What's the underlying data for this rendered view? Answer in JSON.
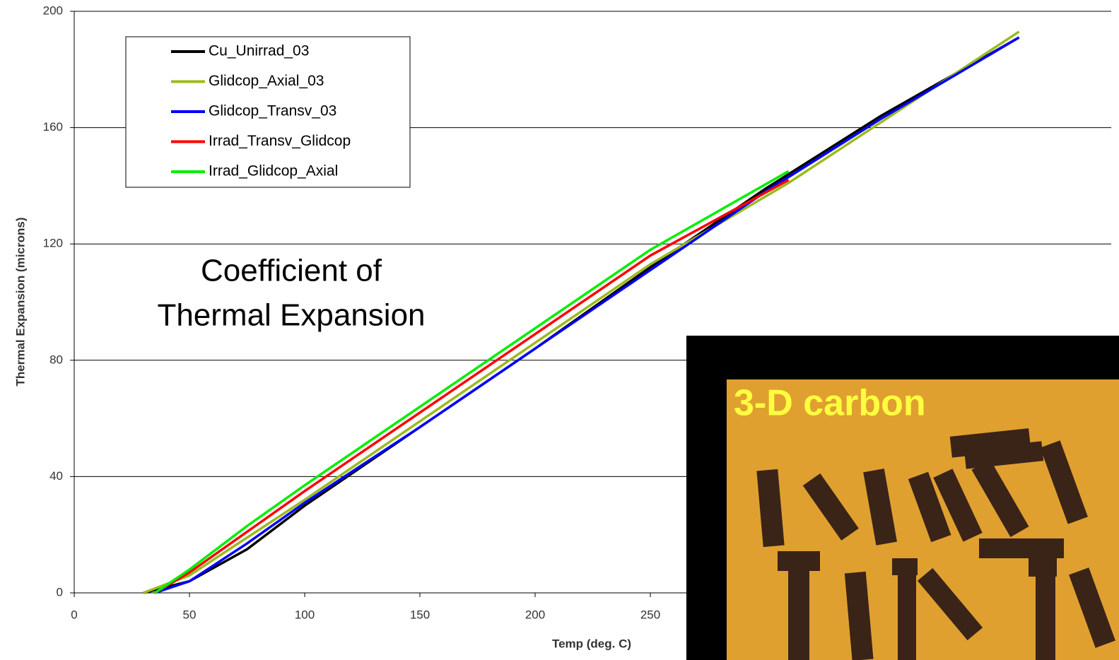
{
  "chart_data": {
    "type": "line",
    "annotation": [
      "Coefficient of",
      "Thermal Expansion"
    ],
    "x_label": "Temp (deg. C)",
    "y_label": "Thermal Expansion (microns)",
    "inset_label": "3-D carbon",
    "xlim": [
      0,
      450
    ],
    "xticks": [
      0,
      50,
      100,
      150,
      200,
      250
    ],
    "ylim": [
      0,
      200
    ],
    "yticks": [
      0,
      40,
      80,
      120,
      160,
      200
    ],
    "grid": true,
    "series": [
      {
        "name": "Cu_Unirrad_03",
        "color": "#000000",
        "x": [
          30,
          50,
          75,
          100,
          150,
          200,
          250,
          300,
          350,
          410
        ],
        "values": [
          0,
          4,
          15,
          30,
          57,
          84,
          112,
          139,
          164,
          191
        ]
      },
      {
        "name": "Glidcop_Axial_03",
        "color": "#9bbb1c",
        "x": [
          30,
          50,
          75,
          100,
          150,
          200,
          250,
          310,
          360,
          410
        ],
        "values": [
          0,
          6,
          19,
          32,
          59,
          86,
          113,
          141,
          167,
          193
        ]
      },
      {
        "name": "Glidcop_Transv_03",
        "color": "#0000ff",
        "x": [
          35,
          50,
          75,
          100,
          150,
          200,
          250,
          300,
          350,
          410
        ],
        "values": [
          0,
          4,
          17,
          31,
          57,
          84,
          111,
          138,
          163,
          191
        ]
      },
      {
        "name": "Irrad_Transv_Glidcop",
        "color": "#ff0000",
        "x": [
          35,
          50,
          75,
          100,
          150,
          200,
          250,
          310
        ],
        "values": [
          0,
          7,
          21,
          35,
          62,
          89,
          116,
          142
        ]
      },
      {
        "name": "Irrad_Glidcop_Axial",
        "color": "#00ee00",
        "x": [
          35,
          50,
          75,
          100,
          150,
          200,
          250,
          310
        ],
        "values": [
          0,
          8,
          23,
          37,
          64,
          91,
          118,
          145
        ]
      }
    ]
  }
}
